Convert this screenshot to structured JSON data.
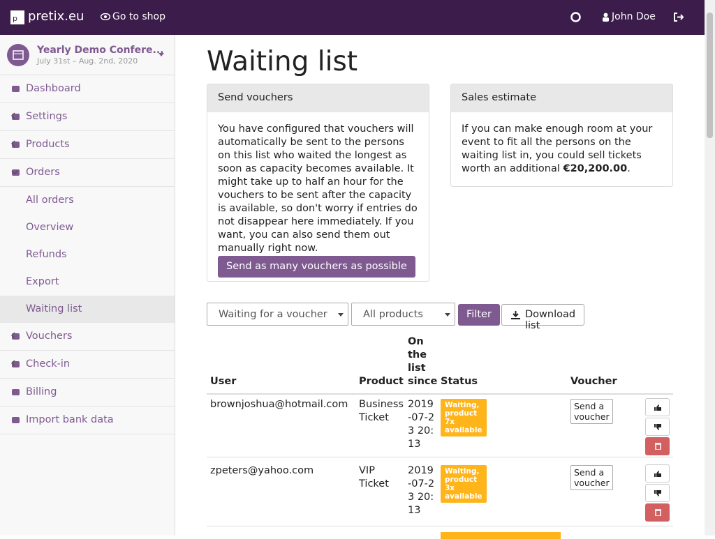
{
  "topbar": {
    "brand": "pretix.eu",
    "shop": "Go to shop",
    "user": "John Doe"
  },
  "event": {
    "name": "Yearly Demo Confere...",
    "dates": "July 31st – Aug. 2nd, 2020"
  },
  "nav": {
    "items": [
      "Dashboard",
      "Settings",
      "Products",
      "Orders"
    ],
    "orders_sub": [
      "All orders",
      "Overview",
      "Refunds",
      "Export",
      "Waiting list"
    ],
    "items_after": [
      "Vouchers",
      "Check-in",
      "Billing",
      "Import bank data"
    ]
  },
  "page": {
    "title": "Waiting list"
  },
  "send_vouchers": {
    "heading": "Send vouchers",
    "text": "You have configured that vouchers will automatically be sent to the persons on this list who waited the longest as soon as capacity becomes available. It might take up to half an hour for the vouchers to be sent after the capacity is available, so don't worry if entries do not disappear here immediately. If you want, you can also send them out manually right now.",
    "button": "Send as many vouchers as possible"
  },
  "sales_estimate": {
    "heading": "Sales estimate",
    "text": "If you can make enough room at your event to fit all the persons on the waiting list in, you could sell tickets worth an additional ",
    "amount": "€20,200.00",
    "end": "."
  },
  "filters": {
    "status": "Waiting for a voucher",
    "products": "All products",
    "filter": "Filter",
    "download": "Download list"
  },
  "table": {
    "headers": [
      "User",
      "Product",
      "On the list since",
      "Status",
      "Voucher"
    ],
    "rows": [
      [
        "brownjoshua@hotmail.com",
        "Business Ticket",
        "2019-07-23 20:13",
        "Waiting, product 7x available",
        "Send a voucher"
      ],
      [
        "zpeters@yahoo.com",
        "VIP Ticket",
        "2019-07-23 20:13",
        "Waiting, product 3x available",
        "Send a voucher"
      ]
    ]
  }
}
